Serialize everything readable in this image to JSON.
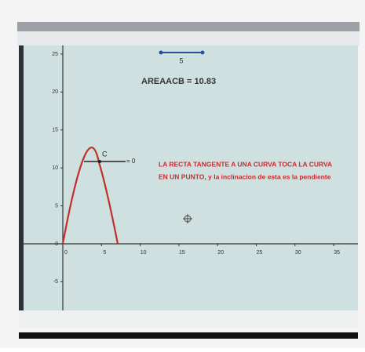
{
  "slider": {
    "label": "5"
  },
  "area_text": "AREAACB = 10.83",
  "point_label": "C",
  "tangent_label": "= 0",
  "annotation": {
    "lines": [
      "LA RECTA TANGENTE A UNA CURVA TOCA LA CURVA",
      "EN UN PUNTO, y la inclinacion de esta es la pendiente"
    ]
  },
  "axes": {
    "xticks": [
      0,
      5,
      10,
      15,
      20,
      25,
      30,
      35
    ],
    "yticks": [
      25,
      20,
      15,
      10,
      5,
      0,
      -5
    ]
  }
}
